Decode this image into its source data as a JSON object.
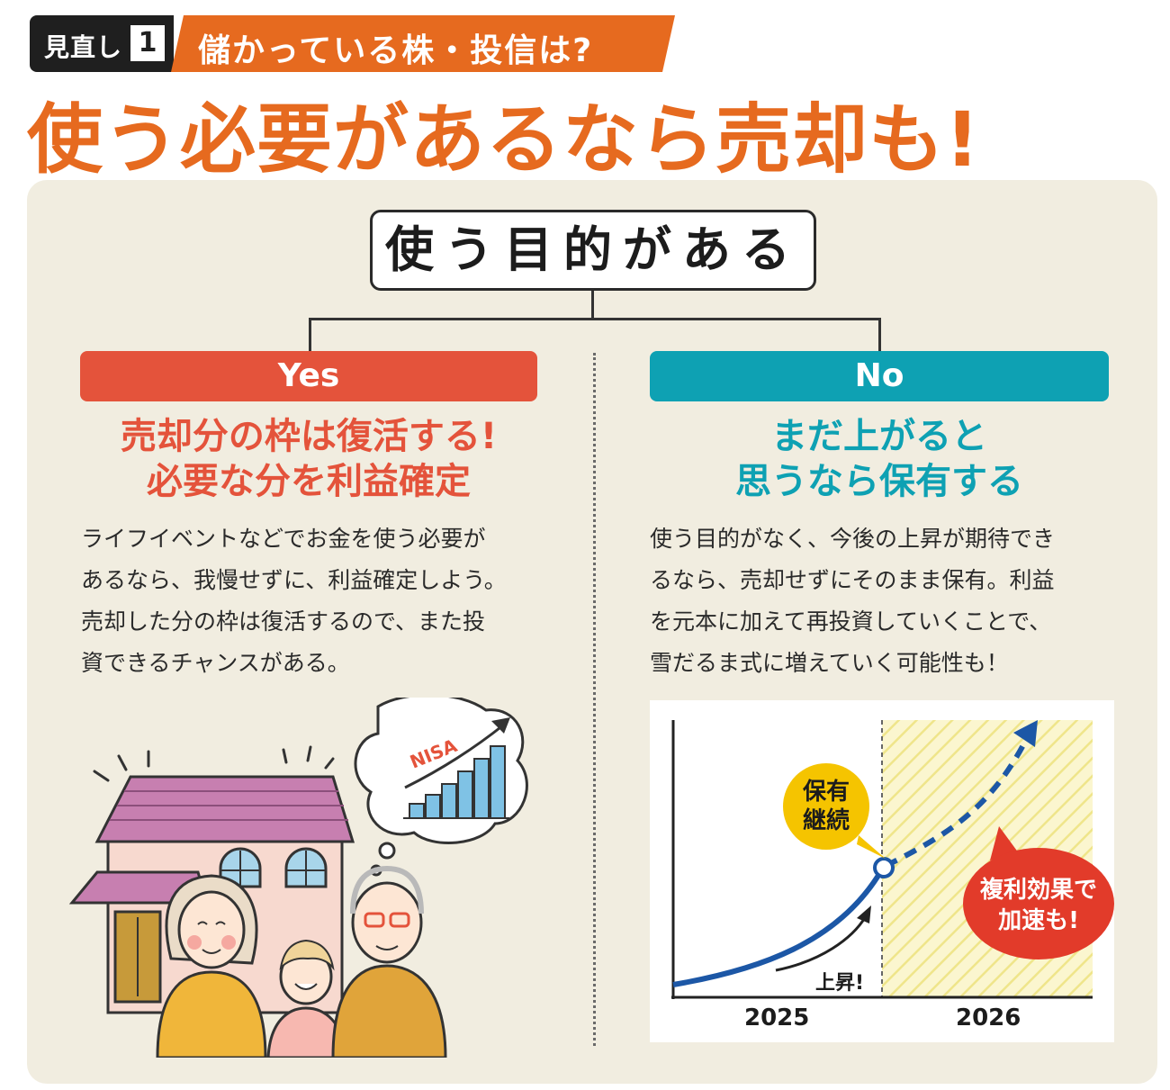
{
  "header": {
    "tag_label": "見直し",
    "tag_number": "1",
    "tag_question": "儲かっている株・投信は?",
    "title": "使う必要があるなら売却も!"
  },
  "question": "使う目的がある",
  "yes": {
    "label": "Yes",
    "headline_line1": "売却分の枠は復活する!",
    "headline_line2": "必要な分を利益確定",
    "body_lines": [
      "ライフイベントなどでお金を使う必要が",
      "あるなら、我慢せずに、利益確定しよう。",
      "売却した分の枠は復活するので、また投",
      "資できるチャンスがある。"
    ],
    "nisa_label": "NISA"
  },
  "no": {
    "label": "No",
    "headline_line1": "まだ上がると",
    "headline_line2": "思うなら保有する",
    "body_lines": [
      "使う目的がなく、今後の上昇が期待でき",
      "るなら、売却せずにそのまま保有。利益",
      "を元本に加えて再投資していくことで、",
      "雪だるま式に増えていく可能性も！"
    ],
    "graph": {
      "year_left": "2025",
      "year_right": "2026",
      "rise_label": "上昇!",
      "hold_line1": "保有",
      "hold_line2": "継続",
      "compound_line1": "複利効果で",
      "compound_line2": "加速も!"
    }
  },
  "colors": {
    "orange": "#e66a1f",
    "yes_red": "#e4533b",
    "no_teal": "#0ea1b3",
    "panel": "#f1ede0",
    "curve_blue": "#1c57a6",
    "hold_yellow": "#f5c400",
    "compound_red": "#e23b2a"
  }
}
